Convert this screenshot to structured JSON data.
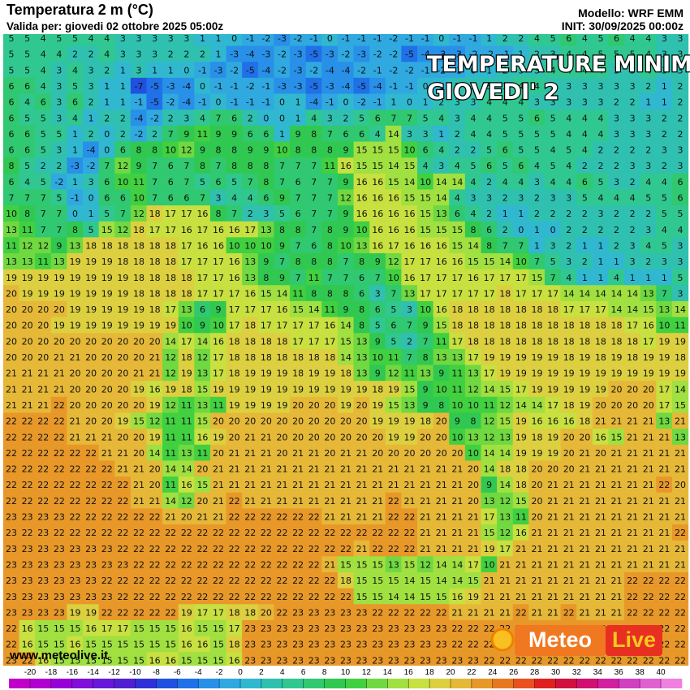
{
  "header": {
    "title": "Temperatura 2 m (°C)",
    "valid": "Valida per: giovedi 02 ottobre 2025 05:00z",
    "model": "Modello: WRF EMM",
    "init": "INIT: 30/09/2025 00:00z"
  },
  "overlay": {
    "line1": "TEMPERATURE MINIME",
    "line2": "GIOVEDI' 2"
  },
  "website": "www.meteolive.it",
  "logo": {
    "part1": "Meteo",
    "part2": "Live"
  },
  "temperature_grid": [
    [
      5,
      5,
      4,
      5,
      5,
      4,
      4,
      3,
      3,
      3,
      3,
      3,
      1,
      1,
      0,
      -1,
      -2,
      -3,
      -2,
      -1,
      0,
      -1,
      -1,
      -1,
      -2,
      -1,
      -1,
      0,
      -1,
      -1,
      1,
      2,
      2,
      4,
      5,
      6,
      4,
      5,
      6,
      4,
      4,
      3,
      3
    ],
    [
      5,
      5,
      4,
      4,
      2,
      2,
      4,
      3,
      3,
      3,
      2,
      2,
      2,
      1,
      -3,
      -4,
      -3,
      -2,
      -3,
      -5,
      -3,
      -2,
      -3,
      -2,
      -2,
      -5,
      -4,
      -3,
      -3,
      -2,
      -2,
      -1,
      1,
      2,
      3,
      4,
      4,
      5,
      5,
      5,
      4,
      3,
      3
    ],
    [
      5,
      5,
      4,
      3,
      4,
      3,
      2,
      1,
      3,
      1,
      1,
      0,
      -1,
      -3,
      -2,
      -5,
      -4,
      -2,
      -3,
      -2,
      -4,
      -4,
      -2,
      -1,
      -2,
      -2,
      -1,
      -2,
      -1,
      0,
      1,
      2,
      3,
      3,
      4,
      4,
      4,
      4,
      3,
      3,
      4,
      3,
      3
    ],
    [
      6,
      6,
      4,
      3,
      5,
      3,
      1,
      1,
      -7,
      -5,
      -3,
      -4,
      0,
      -1,
      -1,
      -2,
      -1,
      -3,
      -3,
      -5,
      -3,
      -4,
      -5,
      -4,
      -1,
      -1,
      0,
      1,
      2,
      3,
      3,
      3,
      4,
      4,
      3,
      3,
      3,
      3,
      3,
      3,
      2,
      1,
      2
    ],
    [
      6,
      4,
      6,
      3,
      6,
      2,
      1,
      1,
      -1,
      -5,
      -2,
      -4,
      -1,
      0,
      -1,
      -1,
      -1,
      0,
      1,
      -4,
      -1,
      0,
      -2,
      -1,
      1,
      0,
      1,
      2,
      3,
      3,
      4,
      4,
      4,
      3,
      3,
      3,
      3,
      3,
      2,
      2,
      1,
      1,
      2
    ],
    [
      6,
      5,
      5,
      3,
      4,
      1,
      2,
      2,
      -4,
      -2,
      2,
      3,
      4,
      7,
      6,
      2,
      0,
      0,
      1,
      4,
      3,
      2,
      5,
      6,
      7,
      7,
      5,
      4,
      3,
      4,
      4,
      5,
      5,
      6,
      5,
      4,
      4,
      4,
      3,
      3,
      3,
      2,
      2
    ],
    [
      6,
      6,
      5,
      5,
      1,
      2,
      0,
      2,
      -2,
      2,
      7,
      9,
      11,
      9,
      9,
      6,
      6,
      1,
      9,
      8,
      7,
      6,
      6,
      4,
      14,
      3,
      3,
      1,
      2,
      4,
      4,
      5,
      5,
      5,
      5,
      4,
      4,
      4,
      3,
      3,
      3,
      2,
      2
    ],
    [
      6,
      6,
      5,
      3,
      1,
      -4,
      0,
      6,
      8,
      8,
      10,
      12,
      9,
      8,
      8,
      9,
      9,
      10,
      8,
      8,
      8,
      9,
      15,
      15,
      15,
      10,
      6,
      4,
      2,
      2,
      5,
      6,
      5,
      5,
      4,
      5,
      4,
      2,
      2,
      2,
      2,
      3,
      3
    ],
    [
      8,
      5,
      2,
      2,
      -3,
      -2,
      7,
      12,
      9,
      7,
      6,
      7,
      8,
      7,
      8,
      8,
      8,
      7,
      7,
      7,
      11,
      16,
      15,
      15,
      14,
      15,
      4,
      3,
      4,
      5,
      6,
      5,
      6,
      4,
      5,
      4,
      2,
      2,
      2,
      3,
      3,
      2,
      3
    ],
    [
      6,
      4,
      5,
      -2,
      1,
      3,
      6,
      10,
      11,
      7,
      6,
      7,
      5,
      6,
      5,
      7,
      8,
      7,
      6,
      7,
      7,
      9,
      16,
      16,
      15,
      14,
      10,
      14,
      14,
      4,
      2,
      4,
      4,
      3,
      4,
      4,
      6,
      5,
      3,
      2,
      4,
      4,
      6
    ],
    [
      7,
      7,
      7,
      5,
      -1,
      0,
      6,
      6,
      10,
      7,
      6,
      6,
      7,
      3,
      4,
      4,
      6,
      9,
      7,
      7,
      7,
      12,
      16,
      16,
      16,
      15,
      15,
      14,
      4,
      3,
      3,
      2,
      3,
      2,
      3,
      3,
      5,
      4,
      4,
      4,
      5,
      5,
      6
    ],
    [
      10,
      8,
      7,
      7,
      0,
      1,
      5,
      7,
      12,
      18,
      17,
      17,
      16,
      8,
      7,
      2,
      3,
      5,
      6,
      7,
      7,
      9,
      16,
      16,
      16,
      16,
      15,
      13,
      6,
      4,
      2,
      1,
      1,
      2,
      2,
      2,
      2,
      3,
      2,
      2,
      2,
      5,
      5
    ],
    [
      13,
      11,
      7,
      7,
      8,
      5,
      15,
      12,
      18,
      17,
      17,
      16,
      17,
      16,
      16,
      17,
      13,
      8,
      8,
      7,
      8,
      9,
      10,
      16,
      16,
      16,
      15,
      15,
      15,
      8,
      6,
      2,
      0,
      1,
      0,
      2,
      2,
      2,
      2,
      2,
      3,
      4,
      4
    ],
    [
      11,
      12,
      12,
      9,
      13,
      18,
      18,
      18,
      18,
      18,
      18,
      17,
      16,
      16,
      10,
      10,
      10,
      9,
      7,
      6,
      8,
      10,
      13,
      16,
      17,
      16,
      16,
      16,
      15,
      14,
      8,
      7,
      7,
      1,
      3,
      2,
      1,
      1,
      2,
      3,
      4,
      5,
      3
    ],
    [
      13,
      13,
      11,
      13,
      19,
      19,
      19,
      18,
      18,
      18,
      18,
      17,
      17,
      17,
      16,
      13,
      9,
      7,
      8,
      8,
      8,
      7,
      8,
      9,
      12,
      17,
      17,
      16,
      16,
      15,
      15,
      14,
      10,
      7,
      5,
      3,
      2,
      1,
      1,
      3,
      2,
      3,
      3
    ],
    [
      19,
      19,
      19,
      19,
      19,
      19,
      19,
      19,
      18,
      18,
      18,
      18,
      17,
      17,
      16,
      13,
      8,
      9,
      7,
      11,
      7,
      7,
      6,
      7,
      10,
      16,
      17,
      17,
      17,
      16,
      17,
      17,
      17,
      15,
      7,
      4,
      1,
      1,
      4,
      1,
      1,
      1,
      5
    ],
    [
      20,
      19,
      19,
      19,
      19,
      19,
      19,
      19,
      18,
      18,
      18,
      18,
      17,
      17,
      17,
      16,
      15,
      14,
      11,
      8,
      8,
      8,
      6,
      3,
      7,
      13,
      17,
      17,
      17,
      17,
      17,
      18,
      17,
      17,
      17,
      14,
      14,
      14,
      14,
      14,
      13,
      7,
      3
    ],
    [
      20,
      20,
      20,
      20,
      19,
      19,
      19,
      19,
      19,
      18,
      17,
      13,
      6,
      9,
      17,
      17,
      17,
      16,
      15,
      14,
      11,
      9,
      8,
      6,
      5,
      3,
      10,
      16,
      18,
      18,
      18,
      18,
      18,
      18,
      18,
      17,
      17,
      17,
      14,
      14,
      15,
      13,
      14
    ],
    [
      20,
      20,
      20,
      19,
      19,
      19,
      19,
      19,
      19,
      19,
      19,
      10,
      9,
      10,
      17,
      18,
      17,
      17,
      17,
      17,
      16,
      14,
      8,
      5,
      6,
      7,
      9,
      15,
      18,
      18,
      18,
      18,
      18,
      18,
      18,
      18,
      18,
      18,
      18,
      17,
      16,
      10,
      11
    ],
    [
      20,
      20,
      20,
      20,
      20,
      20,
      20,
      20,
      20,
      20,
      14,
      17,
      14,
      16,
      18,
      18,
      18,
      18,
      17,
      17,
      17,
      15,
      13,
      9,
      5,
      2,
      7,
      11,
      17,
      18,
      18,
      18,
      18,
      18,
      18,
      18,
      18,
      18,
      18,
      18,
      17,
      19,
      19
    ],
    [
      20,
      20,
      20,
      21,
      21,
      20,
      20,
      20,
      20,
      21,
      12,
      18,
      12,
      17,
      18,
      18,
      18,
      18,
      18,
      18,
      18,
      14,
      13,
      10,
      11,
      7,
      8,
      13,
      13,
      17,
      19,
      19,
      19,
      19,
      19,
      18,
      19,
      18,
      19,
      18,
      19,
      19,
      18
    ],
    [
      21,
      21,
      21,
      21,
      20,
      20,
      20,
      20,
      21,
      21,
      12,
      19,
      13,
      17,
      18,
      19,
      19,
      19,
      18,
      19,
      19,
      18,
      13,
      9,
      12,
      11,
      13,
      9,
      11,
      13,
      17,
      19,
      19,
      19,
      19,
      19,
      19,
      19,
      19,
      19,
      19,
      19,
      19
    ],
    [
      21,
      21,
      21,
      21,
      20,
      20,
      20,
      20,
      19,
      16,
      19,
      18,
      15,
      19,
      19,
      19,
      19,
      19,
      19,
      19,
      19,
      19,
      19,
      18,
      19,
      15,
      9,
      10,
      11,
      12,
      14,
      15,
      17,
      19,
      19,
      19,
      19,
      19,
      20,
      20,
      20,
      17,
      14
    ],
    [
      21,
      21,
      21,
      22,
      20,
      20,
      20,
      20,
      20,
      19,
      12,
      11,
      13,
      11,
      19,
      19,
      19,
      19,
      20,
      20,
      20,
      19,
      20,
      19,
      15,
      13,
      9,
      8,
      10,
      10,
      11,
      12,
      14,
      14,
      17,
      18,
      19,
      20,
      20,
      20,
      20,
      17,
      15
    ],
    [
      22,
      22,
      22,
      22,
      21,
      20,
      20,
      19,
      15,
      12,
      11,
      11,
      15,
      20,
      20,
      20,
      20,
      20,
      20,
      20,
      20,
      20,
      20,
      19,
      19,
      19,
      18,
      20,
      9,
      8,
      12,
      15,
      19,
      16,
      16,
      16,
      18,
      21,
      21,
      21,
      21,
      13,
      21
    ],
    [
      22,
      22,
      22,
      22,
      21,
      21,
      21,
      20,
      20,
      19,
      11,
      11,
      16,
      19,
      20,
      21,
      21,
      20,
      20,
      20,
      20,
      20,
      20,
      20,
      19,
      19,
      20,
      20,
      10,
      13,
      12,
      13,
      19,
      18,
      19,
      20,
      20,
      16,
      15,
      21,
      21,
      21,
      13
    ],
    [
      22,
      22,
      22,
      22,
      22,
      22,
      21,
      21,
      20,
      14,
      11,
      13,
      11,
      20,
      21,
      21,
      21,
      20,
      21,
      21,
      20,
      21,
      21,
      20,
      20,
      20,
      20,
      20,
      20,
      10,
      14,
      14,
      19,
      19,
      19,
      20,
      21,
      20,
      21,
      21,
      21,
      21,
      21
    ],
    [
      22,
      22,
      22,
      22,
      22,
      22,
      22,
      21,
      21,
      20,
      14,
      14,
      20,
      21,
      21,
      21,
      21,
      21,
      21,
      21,
      21,
      21,
      21,
      21,
      21,
      21,
      21,
      21,
      21,
      20,
      14,
      18,
      18,
      20,
      20,
      20,
      21,
      21,
      21,
      21,
      21,
      21,
      21
    ],
    [
      22,
      22,
      22,
      22,
      22,
      22,
      22,
      22,
      21,
      20,
      11,
      16,
      15,
      21,
      21,
      21,
      21,
      21,
      21,
      21,
      21,
      21,
      21,
      21,
      21,
      21,
      21,
      21,
      21,
      20,
      9,
      14,
      18,
      20,
      21,
      21,
      21,
      21,
      21,
      21,
      21,
      22,
      20
    ],
    [
      22,
      22,
      22,
      22,
      22,
      22,
      22,
      22,
      21,
      21,
      14,
      12,
      20,
      21,
      22,
      21,
      21,
      21,
      21,
      21,
      21,
      21,
      21,
      21,
      22,
      21,
      21,
      21,
      21,
      20,
      13,
      12,
      15,
      20,
      21,
      21,
      21,
      21,
      21,
      21,
      21,
      21,
      21
    ],
    [
      23,
      23,
      23,
      23,
      22,
      22,
      22,
      22,
      22,
      22,
      21,
      20,
      21,
      21,
      22,
      22,
      22,
      22,
      22,
      22,
      21,
      21,
      21,
      21,
      22,
      22,
      21,
      21,
      21,
      21,
      17,
      13,
      11,
      20,
      21,
      21,
      21,
      21,
      21,
      21,
      21,
      21,
      21
    ],
    [
      23,
      22,
      23,
      22,
      22,
      22,
      22,
      22,
      22,
      22,
      22,
      22,
      22,
      22,
      22,
      22,
      22,
      22,
      22,
      22,
      22,
      22,
      22,
      22,
      22,
      22,
      21,
      21,
      21,
      21,
      15,
      12,
      16,
      21,
      21,
      21,
      21,
      21,
      21,
      21,
      21,
      21,
      22
    ],
    [
      23,
      23,
      23,
      23,
      23,
      23,
      23,
      22,
      22,
      22,
      22,
      22,
      22,
      22,
      22,
      22,
      22,
      22,
      22,
      22,
      22,
      22,
      21,
      22,
      22,
      22,
      21,
      21,
      21,
      21,
      19,
      17,
      21,
      21,
      21,
      21,
      21,
      21,
      21,
      21,
      21,
      21,
      21
    ],
    [
      23,
      23,
      23,
      23,
      23,
      23,
      23,
      23,
      22,
      22,
      22,
      22,
      22,
      22,
      22,
      22,
      22,
      22,
      22,
      22,
      21,
      15,
      15,
      15,
      13,
      15,
      12,
      14,
      14,
      17,
      10,
      21,
      21,
      21,
      21,
      21,
      21,
      21,
      21,
      21,
      21,
      21,
      21
    ],
    [
      23,
      23,
      23,
      23,
      23,
      23,
      22,
      22,
      22,
      22,
      22,
      22,
      22,
      22,
      22,
      22,
      22,
      22,
      22,
      22,
      22,
      18,
      15,
      15,
      15,
      14,
      15,
      14,
      14,
      15,
      21,
      21,
      21,
      21,
      21,
      21,
      21,
      21,
      21,
      22,
      22,
      22,
      22
    ],
    [
      23,
      23,
      23,
      23,
      23,
      23,
      23,
      22,
      22,
      22,
      22,
      22,
      22,
      22,
      22,
      22,
      22,
      22,
      22,
      22,
      22,
      22,
      15,
      15,
      14,
      14,
      15,
      15,
      16,
      19,
      21,
      21,
      21,
      21,
      21,
      21,
      21,
      21,
      21,
      22,
      22,
      22,
      22
    ],
    [
      23,
      23,
      23,
      23,
      19,
      19,
      22,
      22,
      22,
      22,
      22,
      19,
      17,
      17,
      18,
      18,
      20,
      22,
      23,
      23,
      23,
      23,
      23,
      22,
      22,
      22,
      22,
      22,
      21,
      21,
      21,
      21,
      22,
      21,
      21,
      22,
      21,
      21,
      21,
      22,
      22,
      22,
      22
    ],
    [
      22,
      16,
      15,
      15,
      15,
      16,
      17,
      17,
      15,
      15,
      15,
      16,
      15,
      15,
      17,
      23,
      23,
      23,
      23,
      23,
      23,
      23,
      23,
      23,
      23,
      23,
      23,
      23,
      22,
      22,
      22,
      22,
      22,
      22,
      22,
      22,
      22,
      22,
      22,
      22,
      22,
      22,
      22
    ],
    [
      22,
      16,
      15,
      15,
      16,
      15,
      15,
      15,
      15,
      15,
      15,
      16,
      16,
      15,
      18,
      23,
      23,
      23,
      23,
      23,
      23,
      23,
      23,
      23,
      23,
      23,
      23,
      23,
      22,
      22,
      22,
      22,
      22,
      22,
      22,
      22,
      22,
      22,
      22,
      22,
      22,
      22,
      22
    ],
    [
      23,
      22,
      16,
      15,
      15,
      15,
      15,
      15,
      15,
      16,
      16,
      15,
      15,
      15,
      16,
      23,
      23,
      23,
      23,
      23,
      23,
      23,
      23,
      23,
      23,
      23,
      23,
      23,
      23,
      23,
      22,
      22,
      22,
      22,
      22,
      22,
      22,
      22,
      22,
      22,
      22,
      22,
      22
    ]
  ],
  "colorbar": {
    "ticks": [
      -20,
      -18,
      -16,
      -14,
      -12,
      -10,
      -8,
      -6,
      -4,
      -2,
      0,
      2,
      4,
      6,
      8,
      10,
      12,
      14,
      16,
      18,
      20,
      22,
      24,
      26,
      28,
      30,
      32,
      34,
      36,
      38,
      40
    ],
    "colors": [
      "#c000c8",
      "#b000d0",
      "#9800d8",
      "#8010d8",
      "#6818d8",
      "#5020d0",
      "#3030d8",
      "#2050e0",
      "#2070e8",
      "#2890e8",
      "#30a8e0",
      "#30b8d0",
      "#30c0b0",
      "#30c890",
      "#30c870",
      "#30c850",
      "#40d040",
      "#70d840",
      "#a0e040",
      "#c8e040",
      "#dcd040",
      "#e6b838",
      "#e89828",
      "#e87820",
      "#e85020",
      "#e02020",
      "#d01040",
      "#d01070",
      "#d020a0",
      "#d040c0",
      "#e060d0",
      "#f080e0"
    ]
  }
}
